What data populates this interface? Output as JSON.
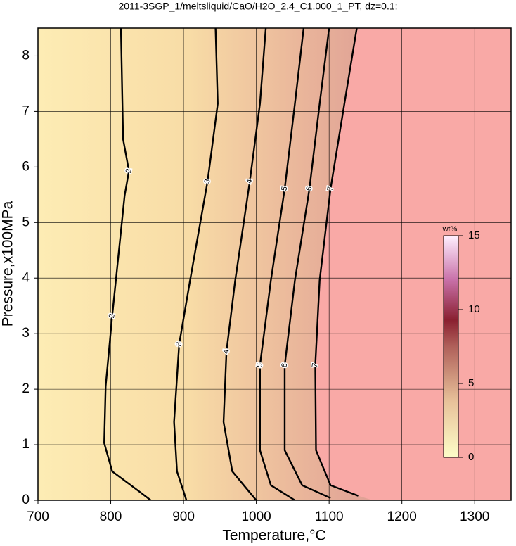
{
  "chart_data": {
    "type": "contour",
    "title": "2011-3SGP_1/meltsliquid/CaO/H2O_2.4_C1.000_1_PT, dz=0.1:",
    "x_label": "Temperature,°C",
    "y_label": "Pressure,x100MPa",
    "xlim": [
      700,
      1350
    ],
    "ylim": [
      0,
      8.5
    ],
    "xticks": [
      700,
      800,
      900,
      1000,
      1100,
      1200,
      1300
    ],
    "yticks": [
      0,
      1,
      2,
      3,
      4,
      5,
      6,
      7,
      8
    ],
    "grid": true,
    "melt_color": "#f9a9a6",
    "boundary": {
      "x": [
        1138,
        1121,
        1102,
        1087,
        1081,
        1082,
        1102,
        1140,
        1160
      ],
      "y": [
        8.5,
        7.14,
        5.61,
        3.96,
        2.43,
        0.9,
        0.27,
        0.08,
        0
      ]
    },
    "series": [
      {
        "name": "2",
        "color": "#000000",
        "x": [
          814,
          817,
          825,
          819,
          802,
          793,
          791,
          802,
          841,
          855
        ],
        "y": [
          8.5,
          6.5,
          5.93,
          5.48,
          3.32,
          2.05,
          1.03,
          0.52,
          0.14,
          0
        ]
      },
      {
        "name": "3",
        "color": "#000000",
        "x": [
          944,
          947,
          933,
          909,
          894,
          887,
          891,
          904
        ],
        "y": [
          8.5,
          7.14,
          5.74,
          3.96,
          2.81,
          1.41,
          0.52,
          0
        ]
      },
      {
        "name": "4",
        "color": "#000000",
        "x": [
          1013,
          1005,
          991,
          971,
          959,
          955,
          967,
          991,
          1000
        ],
        "y": [
          8.5,
          7.14,
          5.74,
          3.96,
          2.68,
          1.41,
          0.52,
          0.14,
          0
        ]
      },
      {
        "name": "5",
        "color": "#000000",
        "x": [
          1065,
          1053,
          1039,
          1020,
          1005,
          1005,
          1020,
          1053
        ],
        "y": [
          8.5,
          7.14,
          5.61,
          3.96,
          2.43,
          0.9,
          0.27,
          0
        ]
      },
      {
        "name": "6",
        "color": "#000000",
        "x": [
          1100,
          1087,
          1073,
          1053,
          1039,
          1039,
          1063,
          1102
        ],
        "y": [
          8.5,
          7.14,
          5.61,
          3.96,
          2.43,
          0.9,
          0.27,
          0.04
        ]
      },
      {
        "name": "7",
        "color": "#000000",
        "x": [
          1138,
          1121,
          1102,
          1087,
          1081,
          1082,
          1102,
          1140
        ],
        "y": [
          8.5,
          7.14,
          5.61,
          3.96,
          2.43,
          0.9,
          0.27,
          0.08
        ]
      }
    ],
    "colorbar": {
      "label": "wt%",
      "lim": [
        0,
        15
      ],
      "ticks": [
        0,
        5,
        10,
        15
      ]
    }
  }
}
